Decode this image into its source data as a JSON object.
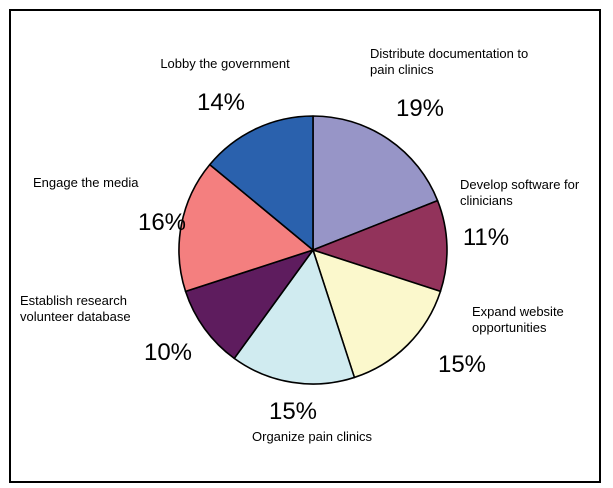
{
  "chart_data": {
    "type": "pie",
    "title": "",
    "start_angle_deg": 0,
    "direction": "clockwise",
    "slices": [
      {
        "label": [
          "Distribute documentation to",
          "pain clinics"
        ],
        "value": 19,
        "value_label": "19%",
        "color": "#9795c7"
      },
      {
        "label": [
          "Develop software for",
          "clinicians"
        ],
        "value": 11,
        "value_label": "11%",
        "color": "#92335b"
      },
      {
        "label": [
          "Expand website",
          "opportunities"
        ],
        "value": 15,
        "value_label": "15%",
        "color": "#fbf8cc"
      },
      {
        "label": [
          "Organize pain clinics"
        ],
        "value": 15,
        "value_label": "15%",
        "color": "#d0ebf0"
      },
      {
        "label": [
          "Establish research",
          "volunteer database"
        ],
        "value": 10,
        "value_label": "10%",
        "color": "#5e1c5e"
      },
      {
        "label": [
          "Engage the media"
        ],
        "value": 16,
        "value_label": "16%",
        "color": "#f47f7f"
      },
      {
        "label": [
          "Lobby the government"
        ],
        "value": 14,
        "value_label": "14%",
        "color": "#2a61ad"
      }
    ]
  }
}
